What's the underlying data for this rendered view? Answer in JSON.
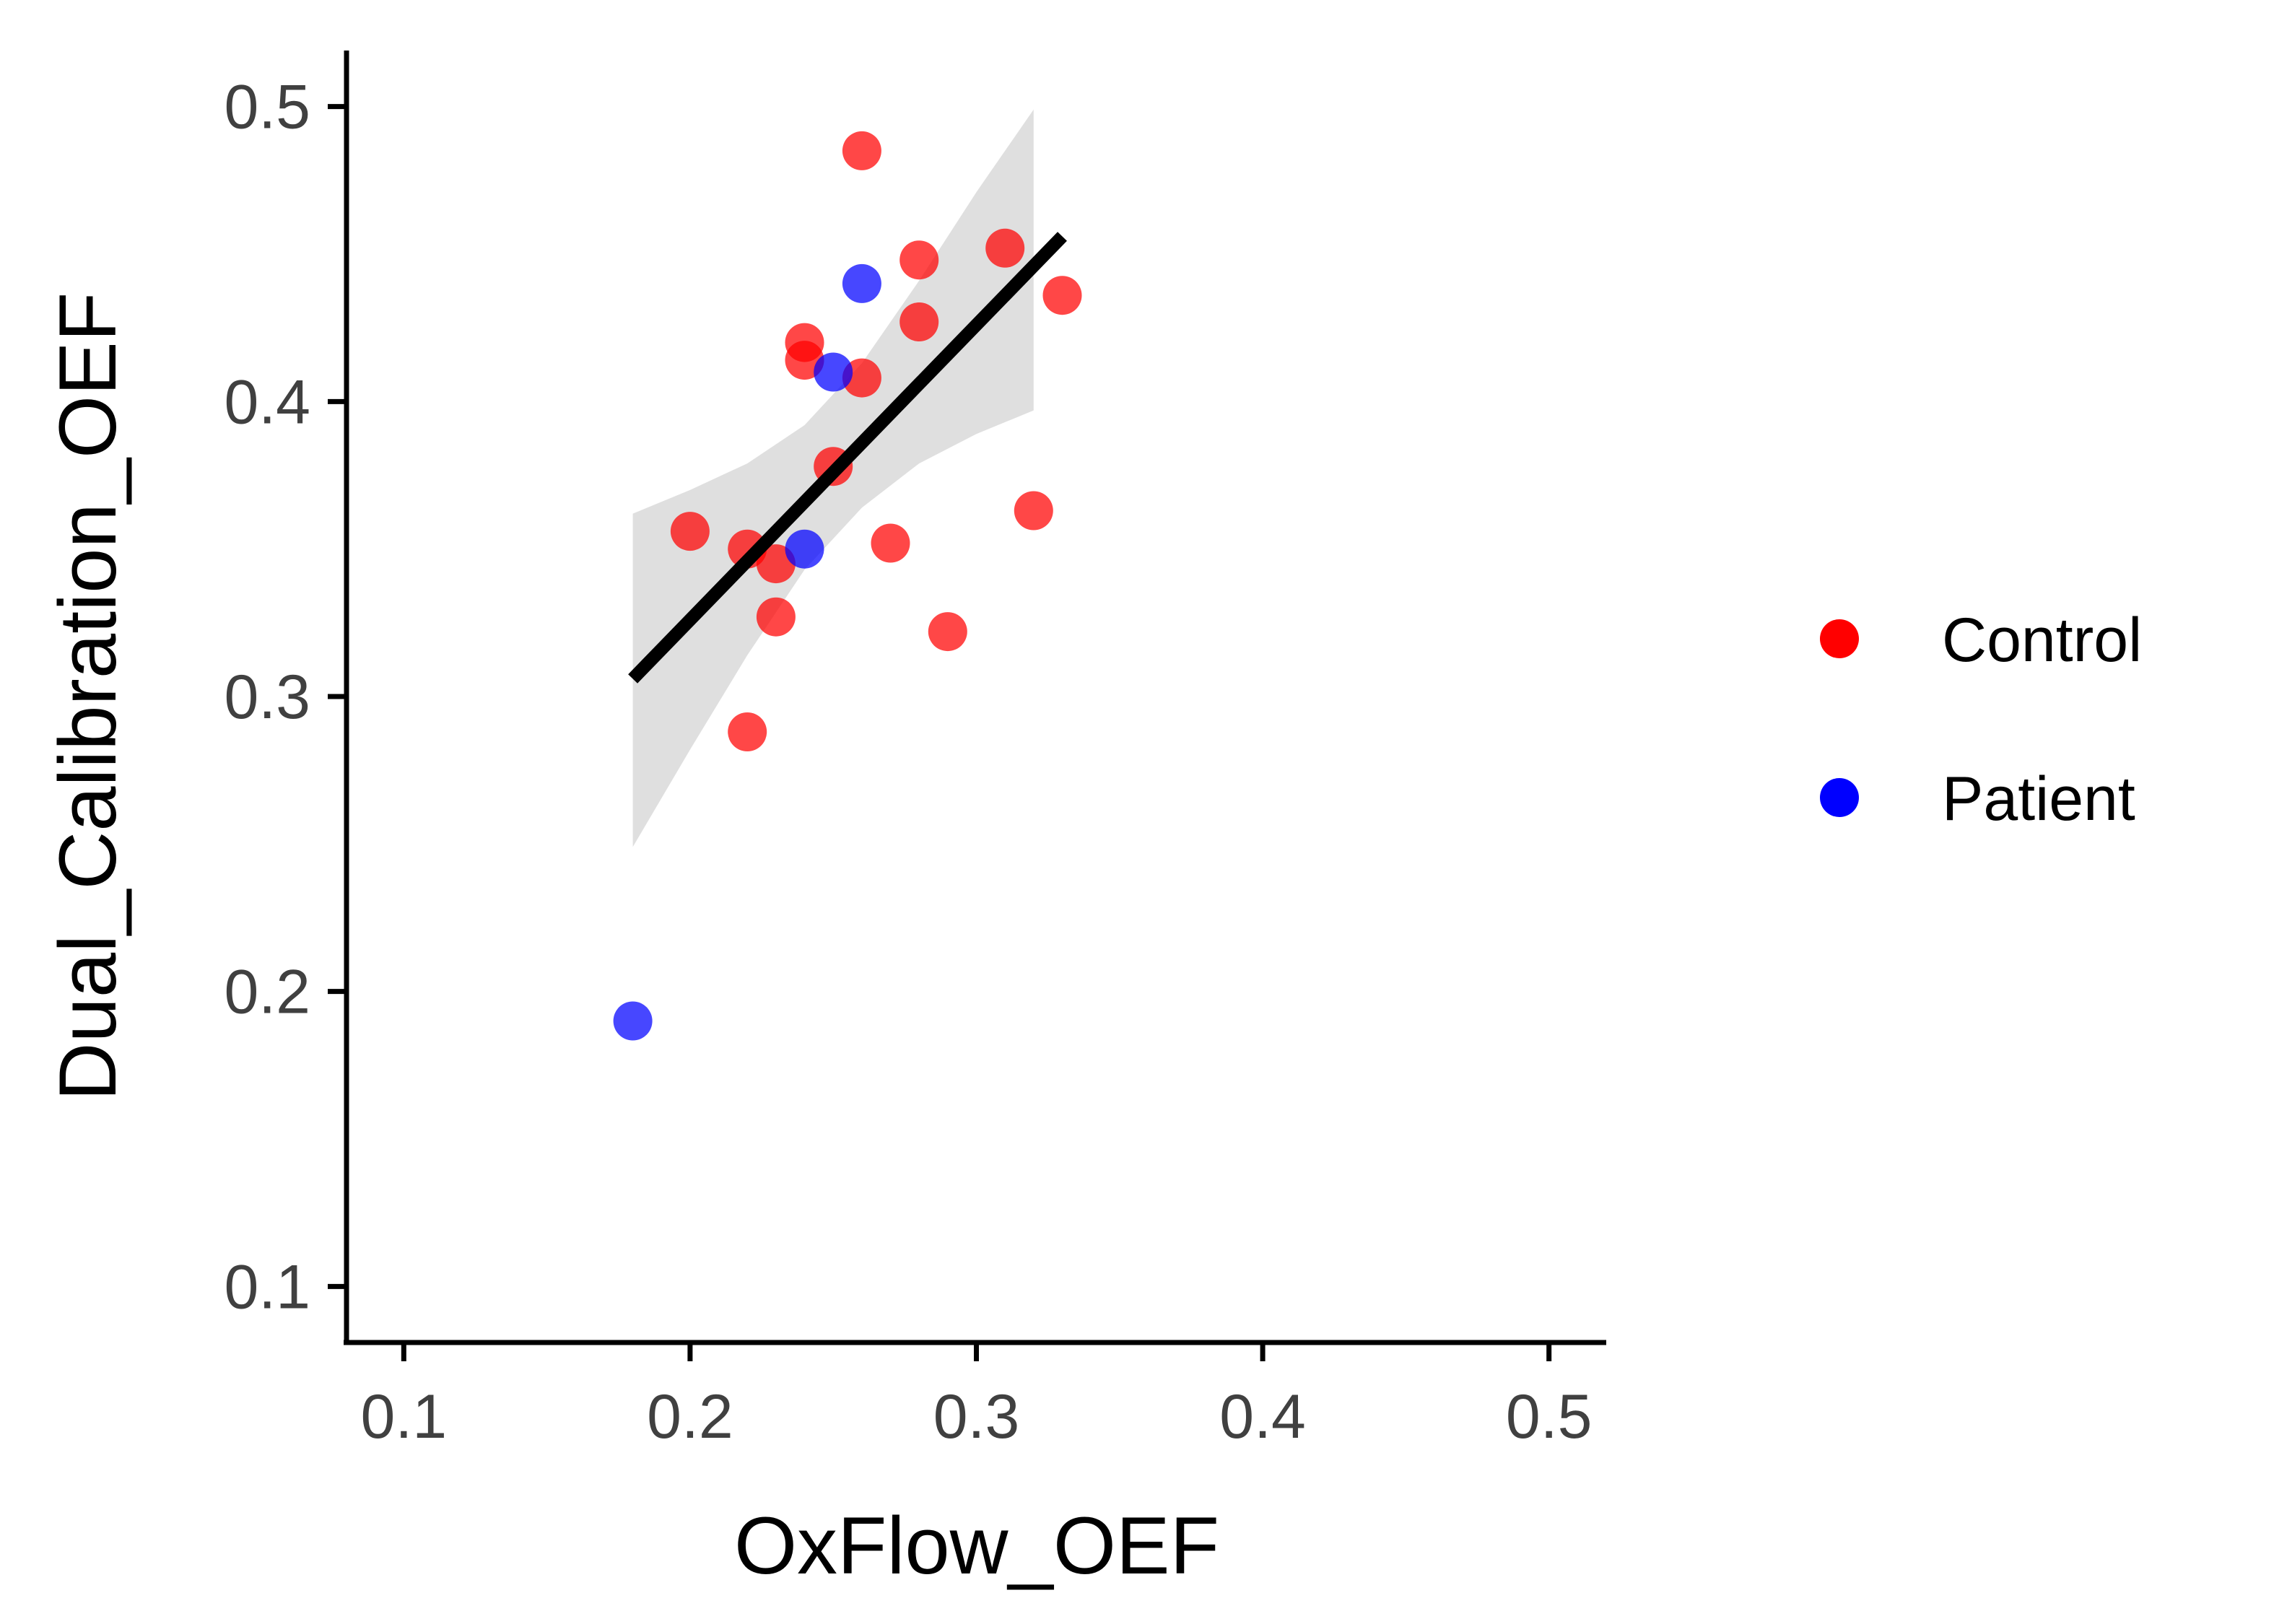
{
  "chart_data": {
    "type": "scatter",
    "xlabel": "OxFlow_OEF",
    "ylabel": "Dual_Calibration_OEF",
    "xlim": [
      0.08,
      0.52
    ],
    "ylim": [
      0.081,
      0.519
    ],
    "xticks": [
      "0.1",
      "0.2",
      "0.3",
      "0.4",
      "0.5"
    ],
    "yticks": [
      "0.1",
      "0.2",
      "0.3",
      "0.4",
      "0.5"
    ],
    "grid": false,
    "legend_position": "right",
    "series": [
      {
        "name": "Control",
        "color": "#FF0000",
        "points": [
          {
            "x": 0.26,
            "y": 0.485
          },
          {
            "x": 0.28,
            "y": 0.448
          },
          {
            "x": 0.31,
            "y": 0.452
          },
          {
            "x": 0.33,
            "y": 0.436
          },
          {
            "x": 0.28,
            "y": 0.427
          },
          {
            "x": 0.24,
            "y": 0.42
          },
          {
            "x": 0.24,
            "y": 0.414
          },
          {
            "x": 0.26,
            "y": 0.408
          },
          {
            "x": 0.25,
            "y": 0.378
          },
          {
            "x": 0.32,
            "y": 0.363
          },
          {
            "x": 0.2,
            "y": 0.356
          },
          {
            "x": 0.27,
            "y": 0.352
          },
          {
            "x": 0.22,
            "y": 0.35
          },
          {
            "x": 0.23,
            "y": 0.345
          },
          {
            "x": 0.23,
            "y": 0.327
          },
          {
            "x": 0.29,
            "y": 0.322
          },
          {
            "x": 0.22,
            "y": 0.288
          }
        ]
      },
      {
        "name": "Patient",
        "color": "#0000FF",
        "points": [
          {
            "x": 0.26,
            "y": 0.44
          },
          {
            "x": 0.25,
            "y": 0.41
          },
          {
            "x": 0.24,
            "y": 0.35
          },
          {
            "x": 0.18,
            "y": 0.19
          }
        ]
      }
    ],
    "regression": {
      "color": "#000000",
      "x_range": [
        0.18,
        0.33
      ],
      "slope": 1.0,
      "intercept": 0.126,
      "ci_color": "#DCDCDC",
      "ci": {
        "x": [
          0.18,
          0.2,
          0.22,
          0.24,
          0.26,
          0.28,
          0.3,
          0.32
        ],
        "lower": [
          0.249,
          0.282,
          0.314,
          0.343,
          0.364,
          0.379,
          0.389,
          0.397
        ],
        "upper": [
          0.362,
          0.37,
          0.379,
          0.392,
          0.413,
          0.441,
          0.471,
          0.499
        ]
      }
    }
  }
}
